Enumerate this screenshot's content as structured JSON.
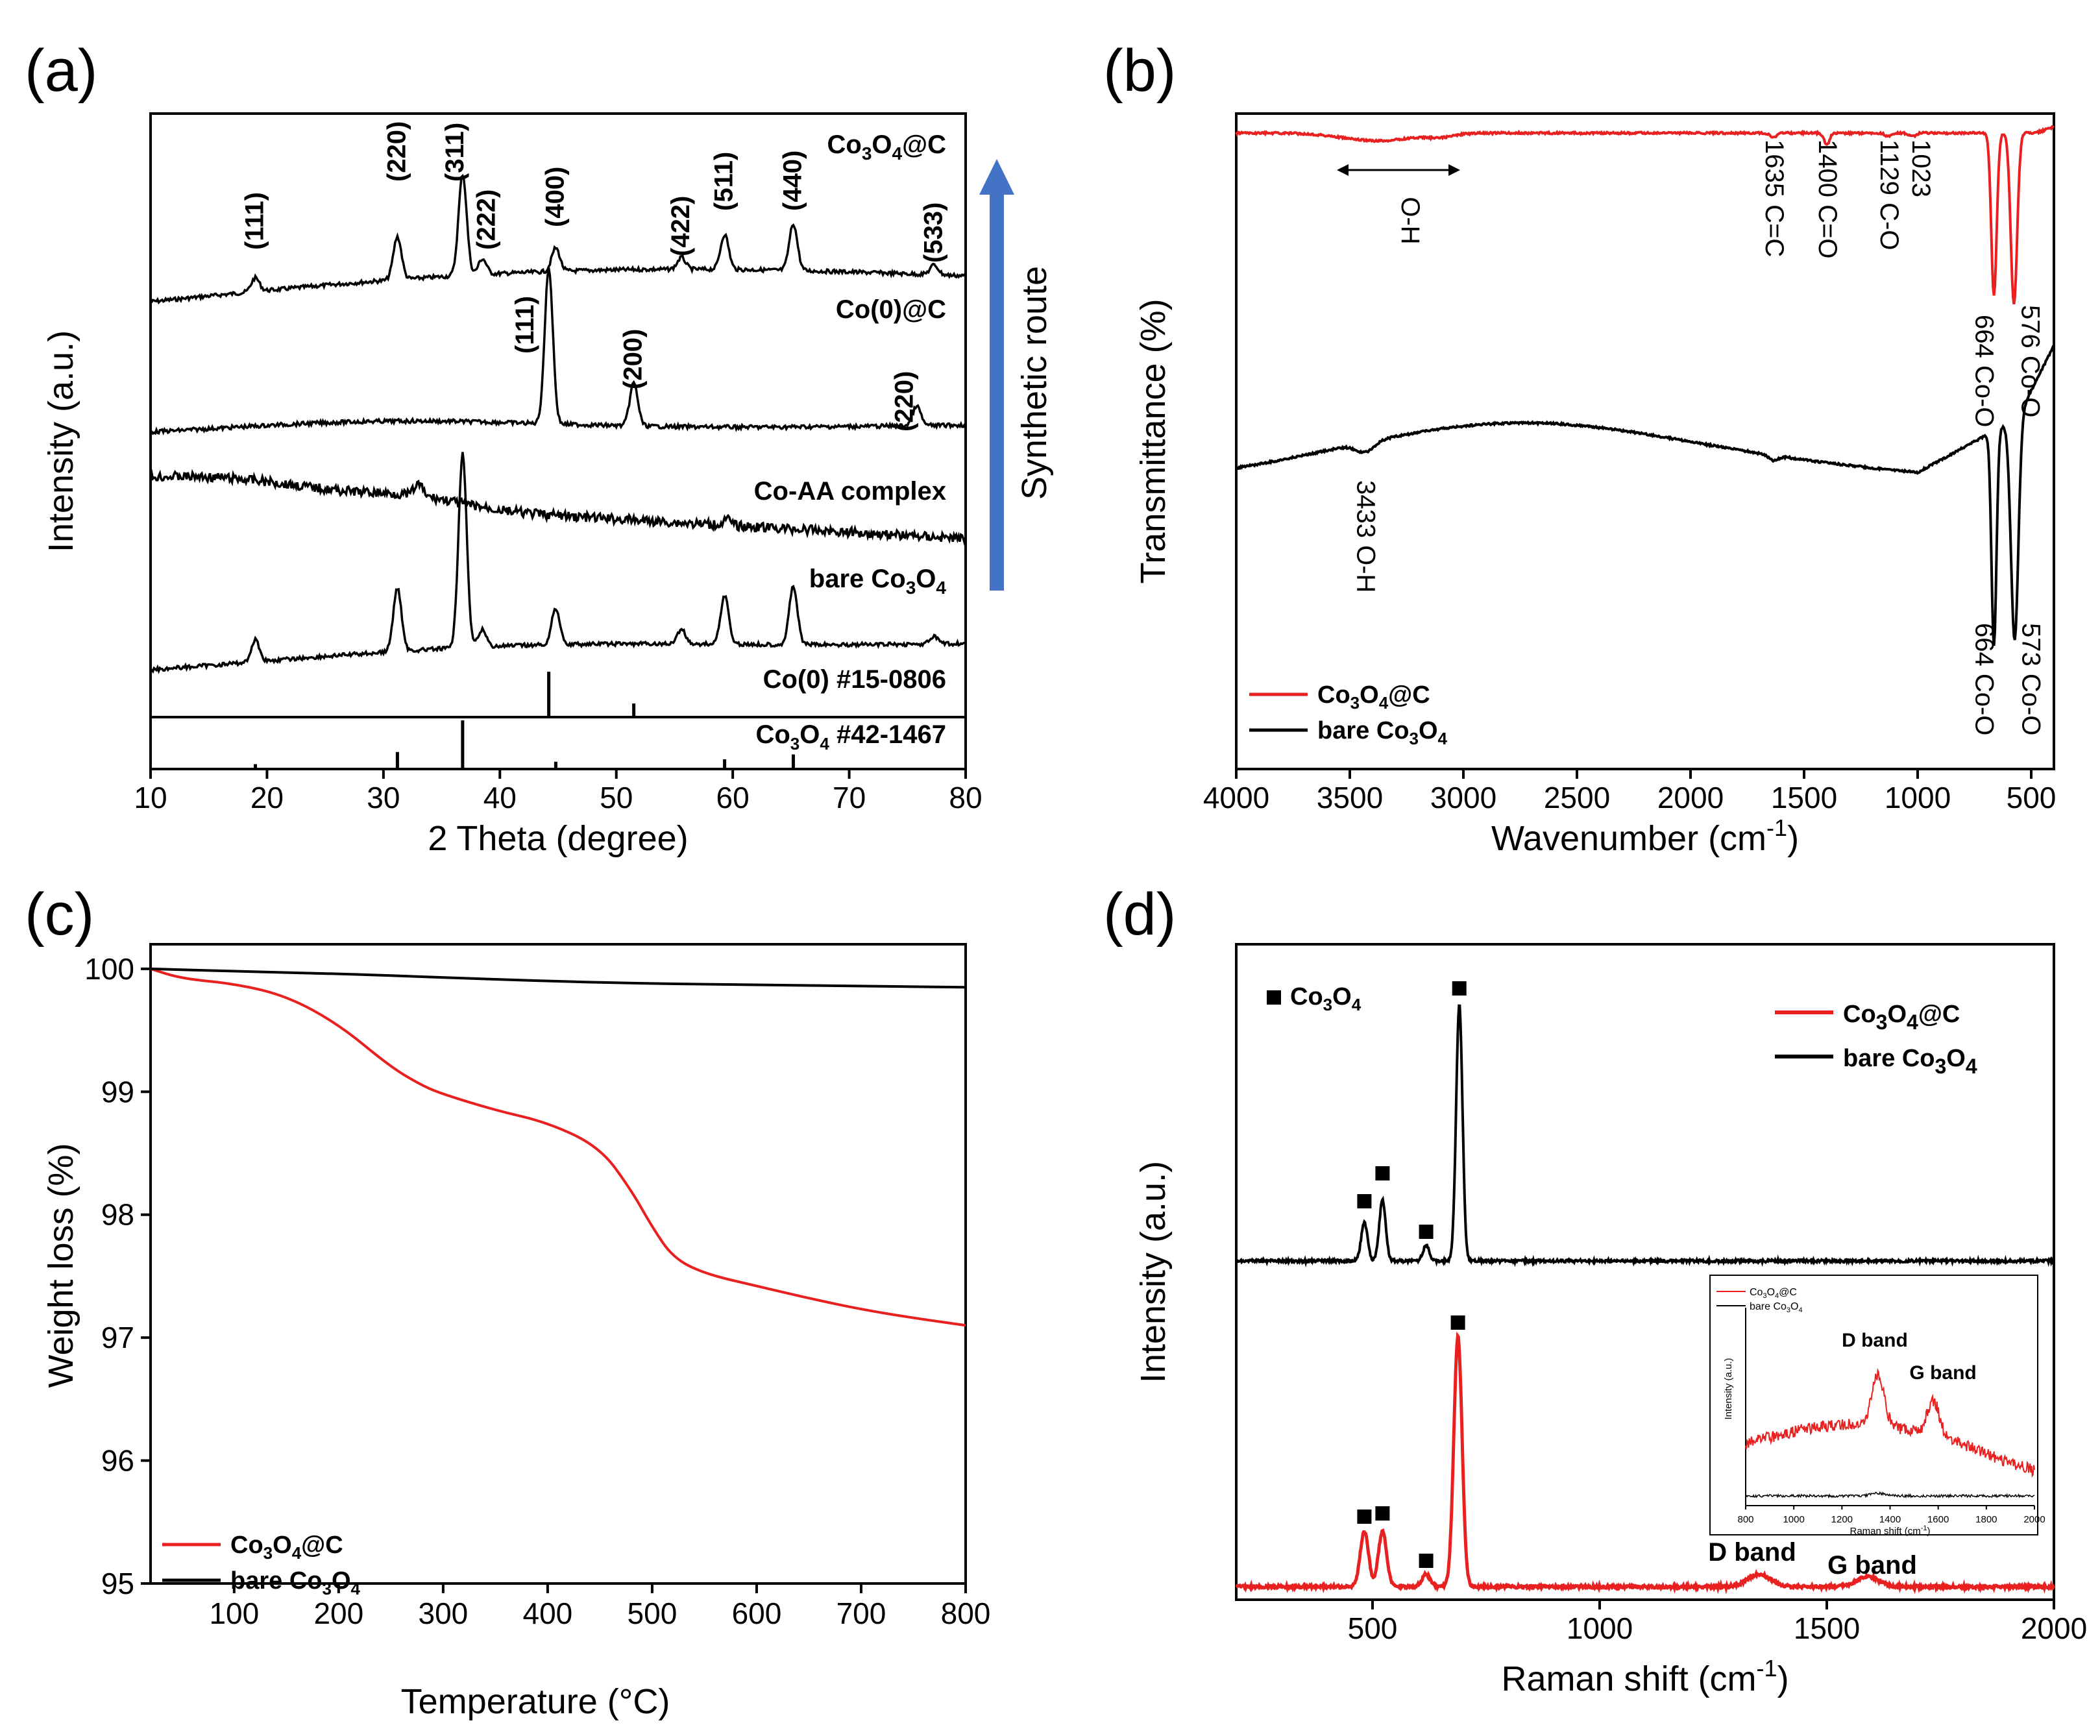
{
  "panel_labels": [
    "(a)",
    "(b)",
    "(c)",
    "(d)"
  ],
  "colors": {
    "red": "#e8201f",
    "black": "#000000",
    "blue": "#4472c4"
  },
  "chart_data": [
    {
      "id": "a",
      "type": "line",
      "xlabel": "2 Theta (degree)",
      "ylabel": "Intensity (a.u.)",
      "xlim": [
        10,
        80
      ],
      "xticks": [
        10,
        20,
        30,
        40,
        50,
        60,
        70,
        80
      ],
      "arrow_label": "Synthetic route",
      "series": [
        {
          "name": "Co3O4@C",
          "label_main": "Co",
          "sub1": "3",
          "mid": "O",
          "sub2": "4",
          "suffix": "@C",
          "peaks": [
            [
              19.0,
              0.35
            ],
            [
              31.2,
              1.1
            ],
            [
              36.8,
              2.6
            ],
            [
              38.5,
              0.4
            ],
            [
              44.8,
              0.6
            ],
            [
              55.6,
              0.3
            ],
            [
              59.3,
              0.9
            ],
            [
              65.2,
              1.2
            ],
            [
              77.3,
              0.25
            ]
          ]
        },
        {
          "name": "Co(0)@C",
          "label": "Co(0)@C",
          "peaks": [
            [
              44.2,
              4.0
            ],
            [
              51.5,
              1.1
            ],
            [
              75.8,
              0.5
            ]
          ]
        },
        {
          "name": "Co-AA complex",
          "label": "Co-AA complex",
          "peaks": [
            [
              33,
              0.3
            ],
            [
              59.5,
              0.15
            ]
          ]
        },
        {
          "name": "bare Co3O4",
          "label_main": "bare Co",
          "sub1": "3",
          "mid": "O",
          "sub2": "4",
          "peaks": [
            [
              19.0,
              0.45
            ],
            [
              31.2,
              1.3
            ],
            [
              36.8,
              4.0
            ],
            [
              38.5,
              0.35
            ],
            [
              44.8,
              0.75
            ],
            [
              55.6,
              0.3
            ],
            [
              59.3,
              1.0
            ],
            [
              65.2,
              1.2
            ],
            [
              77.3,
              0.15
            ]
          ]
        }
      ],
      "hkl_co3o4": [
        {
          "label": "(111)",
          "x": 19.0
        },
        {
          "label": "(220)",
          "x": 31.2
        },
        {
          "label": "(311)",
          "x": 36.2
        },
        {
          "label": "(222)",
          "x": 38.9
        },
        {
          "label": "(400)",
          "x": 44.8
        },
        {
          "label": "(422)",
          "x": 55.6
        },
        {
          "label": "(511)",
          "x": 59.3
        },
        {
          "label": "(440)",
          "x": 65.2
        },
        {
          "label": "(533)",
          "x": 77.3
        }
      ],
      "hkl_co": [
        {
          "label": "(111)",
          "x": 42.2
        },
        {
          "label": "(200)",
          "x": 51.5
        },
        {
          "label": "(220)",
          "x": 74.8
        }
      ],
      "ref_co": {
        "label": "Co(0) #15-0806",
        "lines": [
          [
            44.2,
            1.0
          ],
          [
            51.5,
            0.3
          ]
        ]
      },
      "ref_co3o4": {
        "label_main": "Co",
        "sub1": "3",
        "mid": "O",
        "sub2": "4",
        "suffix": " #42-1467",
        "lines": [
          [
            19.0,
            0.1
          ],
          [
            31.2,
            0.35
          ],
          [
            36.8,
            1.0
          ],
          [
            44.8,
            0.15
          ],
          [
            59.3,
            0.2
          ],
          [
            65.2,
            0.3
          ]
        ]
      }
    },
    {
      "id": "b",
      "type": "line",
      "xlabel_main": "Wavenumber (cm",
      "xlabel_sup": "-1",
      "xlabel_end": ")",
      "ylabel": "Transmittance (%)",
      "xlim": [
        4000,
        400
      ],
      "xticks": [
        4000,
        3500,
        3000,
        2500,
        2000,
        1500,
        1000,
        500
      ],
      "annotations_red": [
        {
          "label": "1635 C=C",
          "x": 1635
        },
        {
          "label": "1400 C=O",
          "x": 1400
        },
        {
          "label": "1129 C-O",
          "x": 1129
        },
        {
          "label": "1023",
          "x": 1023
        },
        {
          "label": "664 Co-O",
          "x": 664
        },
        {
          "label": "576 Co-O",
          "x": 576
        }
      ],
      "oh_label": "O-H",
      "annotations_black": [
        {
          "label": "3433 O-H",
          "x": 3433
        },
        {
          "label": "664 Co-O",
          "x": 664
        },
        {
          "label": "573 Co-O",
          "x": 573
        }
      ],
      "legend": [
        {
          "main": "Co",
          "sub1": "3",
          "mid": "O",
          "sub2": "4",
          "suffix": "@C",
          "color": "#e8201f"
        },
        {
          "main": "bare Co",
          "sub1": "3",
          "mid": "O",
          "sub2": "4",
          "suffix": "",
          "color": "#000000"
        }
      ]
    },
    {
      "id": "c",
      "type": "line",
      "xlabel": "Temperature (°C)",
      "ylabel": "Weight loss (%)",
      "xlim": [
        20,
        800
      ],
      "ylim": [
        95,
        100.2
      ],
      "xticks": [
        100,
        200,
        300,
        400,
        500,
        600,
        700,
        800
      ],
      "yticks": [
        95,
        96,
        97,
        98,
        99,
        100
      ],
      "series": [
        {
          "name": "Co3O4@C",
          "color": "#e8201f",
          "x": [
            20,
            50,
            100,
            150,
            200,
            250,
            280,
            300,
            350,
            400,
            450,
            480,
            500,
            520,
            550,
            600,
            650,
            700,
            750,
            800
          ],
          "y": [
            100,
            99.92,
            99.88,
            99.78,
            99.55,
            99.2,
            99.05,
            98.98,
            98.85,
            98.75,
            98.55,
            98.2,
            97.9,
            97.65,
            97.52,
            97.42,
            97.32,
            97.23,
            97.16,
            97.1
          ]
        },
        {
          "name": "bare Co3O4",
          "color": "#000000",
          "x": [
            20,
            100,
            200,
            300,
            400,
            500,
            600,
            700,
            800
          ],
          "y": [
            100,
            99.98,
            99.96,
            99.93,
            99.9,
            99.88,
            99.87,
            99.86,
            99.85
          ]
        }
      ],
      "legend": [
        {
          "main": "Co",
          "sub1": "3",
          "mid": "O",
          "sub2": "4",
          "suffix": "@C",
          "color": "#e8201f"
        },
        {
          "main": "bare Co",
          "sub1": "3",
          "mid": "O",
          "sub2": "4",
          "suffix": "",
          "color": "#000000"
        }
      ]
    },
    {
      "id": "d",
      "type": "line",
      "xlabel_main": "Raman shift (cm",
      "xlabel_sup": "-1",
      "xlabel_end": ")",
      "ylabel": "Intensity (a.u.)",
      "xlim": [
        200,
        2000
      ],
      "xticks": [
        500,
        1000,
        1500,
        2000
      ],
      "marker_legend": {
        "main": "Co",
        "sub1": "3",
        "mid": "O",
        "sub2": "4"
      },
      "legend": [
        {
          "main": "Co",
          "sub1": "3",
          "mid": "O",
          "sub2": "4",
          "suffix": "@C",
          "color": "#e8201f"
        },
        {
          "main": "bare Co",
          "sub1": "3",
          "mid": "O",
          "sub2": "4",
          "suffix": "",
          "color": "#000000"
        }
      ],
      "peaks_black": [
        [
          482,
          0.15
        ],
        [
          522,
          0.24
        ],
        [
          618,
          0.06
        ],
        [
          691,
          1.0
        ]
      ],
      "peaks_red": [
        [
          482,
          0.22
        ],
        [
          522,
          0.22
        ],
        [
          618,
          0.05
        ],
        [
          688,
          1.0
        ],
        [
          1350,
          0.05
        ],
        [
          1590,
          0.04
        ]
      ],
      "d_band": "D band",
      "g_band": "G band",
      "inset": {
        "xlabel": "Raman shift (cm",
        "xlabel_sup": "-1",
        "ylabel": "Intensity (a.u.)",
        "xticks": [
          800,
          1000,
          1200,
          1400,
          1600,
          1800,
          2000
        ],
        "d_band": "D band",
        "g_band": "G band",
        "legend": [
          {
            "main": "Co",
            "sub1": "3",
            "mid": "O",
            "sub2": "4",
            "suffix": "@C",
            "color": "#e8201f"
          },
          {
            "main": "bare Co",
            "sub1": "3",
            "mid": "O",
            "sub2": "4",
            "suffix": "",
            "color": "#000000"
          }
        ]
      }
    }
  ]
}
